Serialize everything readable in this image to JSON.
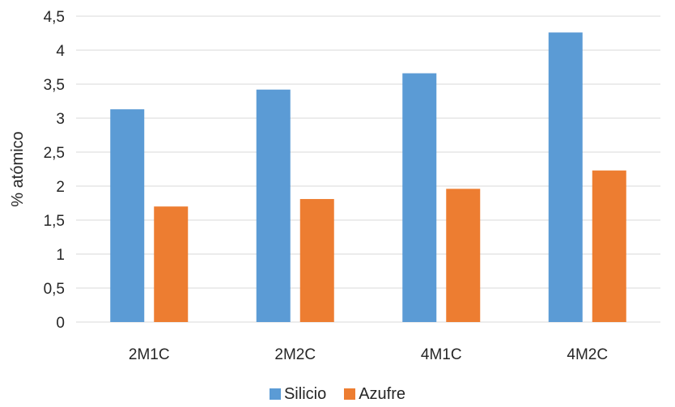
{
  "chart_data": {
    "type": "bar",
    "categories": [
      "2M1C",
      "2M2C",
      "4M1C",
      "4M2C"
    ],
    "series": [
      {
        "name": "Silicio",
        "values": [
          3.13,
          3.42,
          3.66,
          4.26
        ],
        "color": "#5B9BD5"
      },
      {
        "name": "Azufre",
        "values": [
          1.7,
          1.81,
          1.96,
          2.23
        ],
        "color": "#ED7D31"
      }
    ],
    "ylabel": "% atómico",
    "xlabel": "",
    "ylim": [
      0,
      4.5
    ],
    "yticks": [
      "0",
      "0,5",
      "1",
      "1,5",
      "2",
      "2,5",
      "3",
      "3,5",
      "4",
      "4,5"
    ],
    "grid": true,
    "legend_position": "bottom"
  }
}
